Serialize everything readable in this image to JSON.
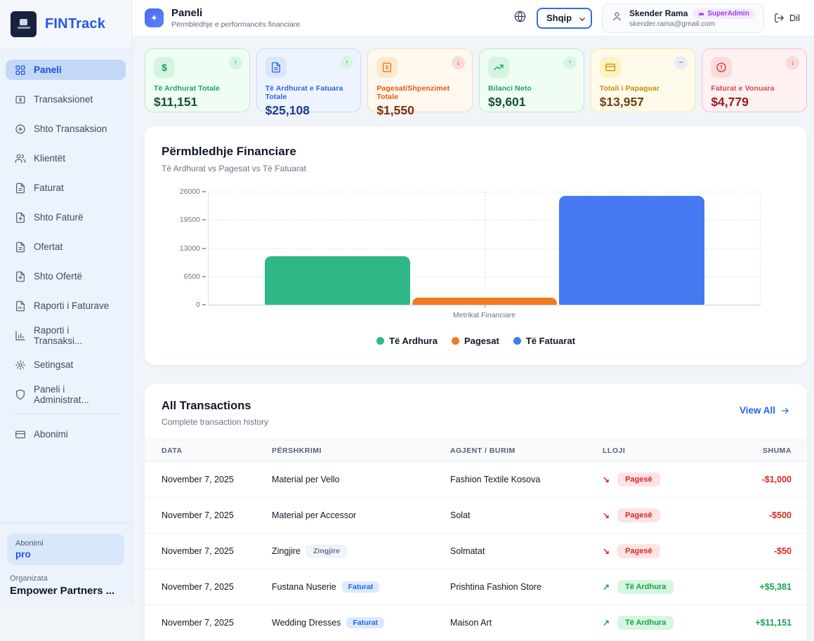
{
  "app": {
    "brand": "FINTrack"
  },
  "sidebar": {
    "items": [
      {
        "label": "Paneli",
        "icon": "grid-icon",
        "active": true
      },
      {
        "label": "Transaksionet",
        "icon": "banknote-icon"
      },
      {
        "label": "Shto Transaksion",
        "icon": "plus-circle-icon"
      },
      {
        "label": "Klientët",
        "icon": "users-icon"
      },
      {
        "label": "Faturat",
        "icon": "file-text-icon"
      },
      {
        "label": "Shto Faturë",
        "icon": "file-plus-icon"
      },
      {
        "label": "Ofertat",
        "icon": "file-text-icon"
      },
      {
        "label": "Shto Ofertë",
        "icon": "file-plus-icon"
      },
      {
        "label": "Raporti i Faturave",
        "icon": "file-chart-icon"
      },
      {
        "label": "Raporti i Transaksi...",
        "icon": "bar-chart-icon"
      },
      {
        "label": "Setingsat",
        "icon": "gear-icon"
      },
      {
        "label": "Paneli i Administrat...",
        "icon": "shield-icon"
      },
      {
        "label": "Abonimi",
        "icon": "credit-card-icon"
      }
    ],
    "subscription": {
      "label": "Abonimi",
      "plan": "pro"
    },
    "organization": {
      "label": "Organizata",
      "name": "Empower Partners ..."
    }
  },
  "header": {
    "title": "Paneli",
    "subtitle": "Përmbledhje e performancës financiare",
    "language": "Shqip",
    "user": {
      "name": "Skender Rama",
      "badge": "SuperAdmin",
      "email": "skender.rama@gmail.com"
    },
    "logout_label": "Dil"
  },
  "stats": [
    {
      "label": "Të Ardhurat Totale",
      "value": "$11,151",
      "icon": "dollar-icon",
      "trend": "up",
      "trend_glyph": "↑",
      "theme": "green"
    },
    {
      "label": "Të Ardhurat e Fatuara Totale",
      "value": "$25,108",
      "icon": "document-icon",
      "trend": "up",
      "trend_glyph": "↑",
      "theme": "blue"
    },
    {
      "label": "Pagesat/Shpenzimet Totale",
      "value": "$1,550",
      "icon": "invoice-icon",
      "trend": "down",
      "trend_glyph": "↓",
      "theme": "orange"
    },
    {
      "label": "Bilanci Neto",
      "value": "$9,601",
      "icon": "trending-up-icon",
      "trend": "up",
      "trend_glyph": "↑",
      "theme": "green"
    },
    {
      "label": "Totali i Papaguar",
      "value": "$13,957",
      "icon": "credit-card-icon",
      "trend": "neutral",
      "trend_glyph": "−",
      "theme": "yellow"
    },
    {
      "label": "Faturat e Vonuara",
      "value": "$4,779",
      "icon": "alert-circle-icon",
      "trend": "down",
      "trend_glyph": "↓",
      "theme": "red"
    }
  ],
  "chart_data": {
    "type": "bar",
    "title": "Përmbledhje Financiare",
    "subtitle": "Të Ardhurat vs Pagesat vs Të Fatuarat",
    "categories": [
      "Metrikat Financiare"
    ],
    "series": [
      {
        "name": "Të Ardhura",
        "values": [
          11151
        ],
        "color": "#2eb886"
      },
      {
        "name": "Pagesat",
        "values": [
          1550
        ],
        "color": "#f4791f"
      },
      {
        "name": "Të Fatuarat",
        "values": [
          25108
        ],
        "color": "#4479f2"
      }
    ],
    "xlabel": "Metrikat Financiare",
    "yticks": [
      0,
      6500,
      13000,
      19500,
      26000
    ],
    "ylim": [
      0,
      26000
    ],
    "grid": "dashed",
    "legend_position": "bottom"
  },
  "transactions": {
    "title": "All Transactions",
    "subtitle": "Complete transaction history",
    "view_all": "View All",
    "columns": {
      "date": "Data",
      "description": "Përshkrimi",
      "agent": "Agjent / Burim",
      "type": "Lloji",
      "amount": "Shuma"
    },
    "rows": [
      {
        "date": "November 7, 2025",
        "description": "Material per Vello",
        "tag": "",
        "agent": "Fashion Textile Kosova",
        "type": "Pagesë",
        "arrow": "↘",
        "amount": "-$1,000"
      },
      {
        "date": "November 7, 2025",
        "description": "Material per Accessor",
        "tag": "",
        "agent": "Solat",
        "type": "Pagesë",
        "arrow": "↘",
        "amount": "-$500"
      },
      {
        "date": "November 7, 2025",
        "description": "Zingjire",
        "tag": "Zingjire",
        "agent": "Solmatat",
        "type": "Pagesë",
        "arrow": "↘",
        "amount": "-$50"
      },
      {
        "date": "November 7, 2025",
        "description": "Fustana Nuserie",
        "tag": "Faturat",
        "agent": "Prishtina Fashion Store",
        "type": "Të Ardhura",
        "arrow": "↗",
        "amount": "+$5,381"
      },
      {
        "date": "November 7, 2025",
        "description": "Wedding Dresses",
        "tag": "Faturat",
        "agent": "Maison Art",
        "type": "Të Ardhura",
        "arrow": "↗",
        "amount": "+$11,151"
      }
    ]
  }
}
